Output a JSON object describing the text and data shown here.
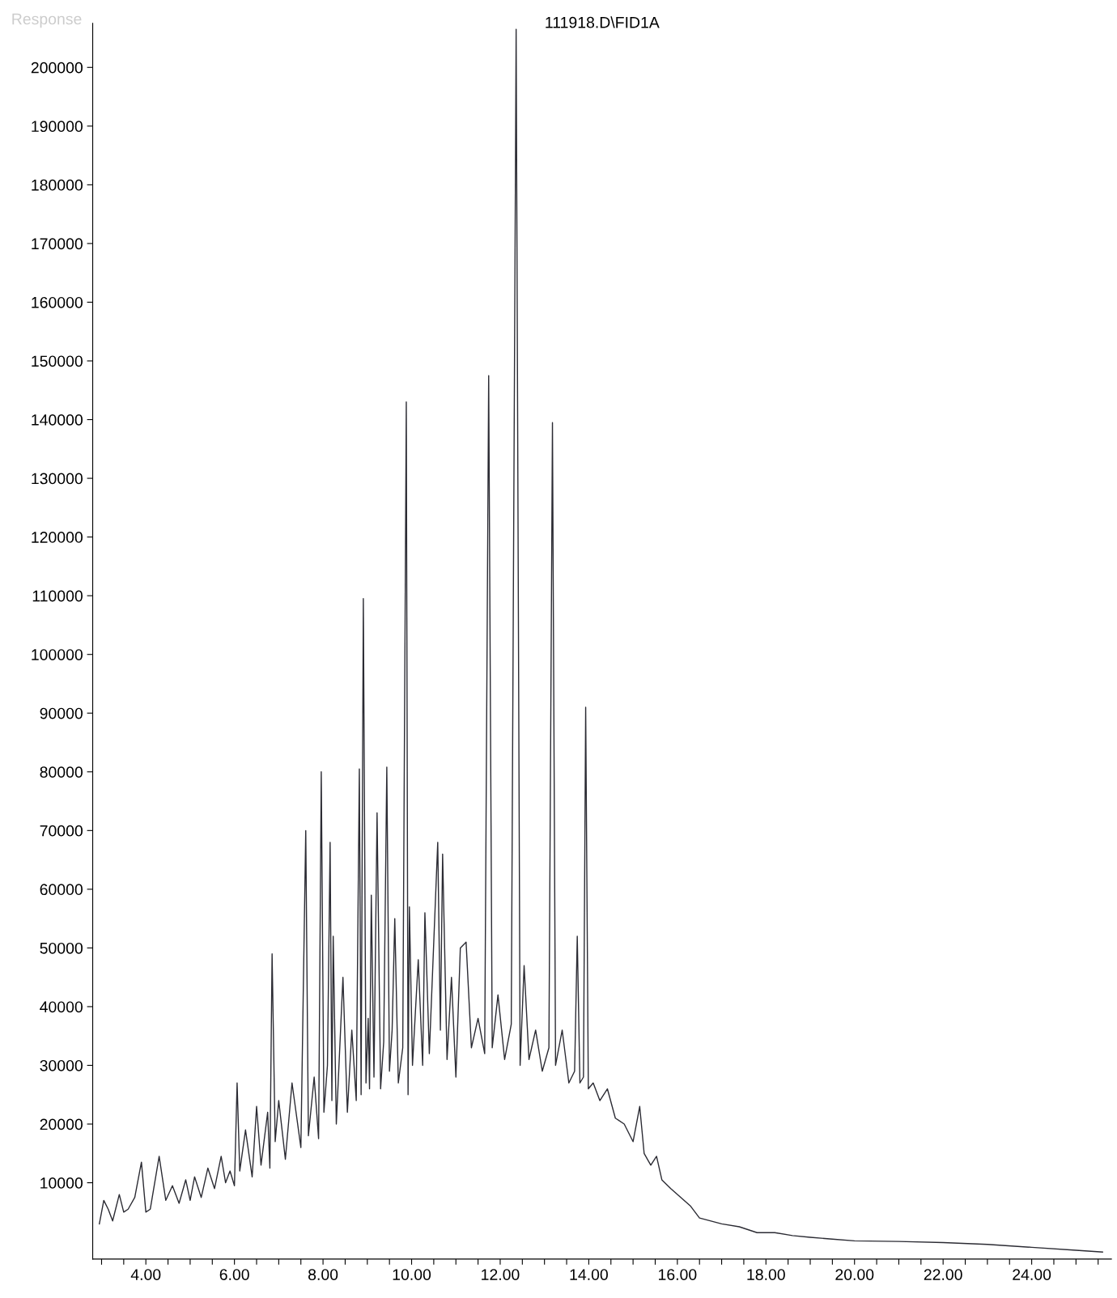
{
  "chart_data": {
    "type": "line",
    "title": "111918.D\\FID1A",
    "ylabel": "Response",
    "x": [
      2.95,
      3.05,
      3.15,
      3.25,
      3.4,
      3.5,
      3.6,
      3.75,
      3.9,
      4.0,
      4.1,
      4.3,
      4.45,
      4.6,
      4.75,
      4.9,
      5.0,
      5.1,
      5.25,
      5.4,
      5.55,
      5.7,
      5.8,
      5.9,
      6.0,
      6.06,
      6.12,
      6.25,
      6.4,
      6.5,
      6.6,
      6.75,
      6.8,
      6.85,
      6.92,
      7.0,
      7.15,
      7.3,
      7.5,
      7.61,
      7.67,
      7.8,
      7.9,
      7.96,
      8.02,
      8.1,
      8.16,
      8.2,
      8.23,
      8.3,
      8.45,
      8.55,
      8.65,
      8.75,
      8.82,
      8.86,
      8.91,
      8.97,
      9.02,
      9.05,
      9.09,
      9.15,
      9.22,
      9.3,
      9.37,
      9.44,
      9.5,
      9.56,
      9.62,
      9.7,
      9.8,
      9.88,
      9.92,
      9.95,
      10.02,
      10.15,
      10.25,
      10.3,
      10.4,
      10.59,
      10.65,
      10.7,
      10.8,
      10.9,
      11.0,
      11.1,
      11.23,
      11.35,
      11.5,
      11.65,
      11.74,
      11.82,
      11.95,
      12.1,
      12.25,
      12.36,
      12.45,
      12.54,
      12.65,
      12.8,
      12.95,
      13.1,
      13.18,
      13.25,
      13.4,
      13.55,
      13.68,
      13.74,
      13.8,
      13.88,
      13.93,
      13.99,
      14.1,
      14.25,
      14.42,
      14.6,
      14.8,
      15.0,
      15.15,
      15.25,
      15.4,
      15.53,
      15.65,
      15.85,
      16.3,
      16.5,
      17.0,
      17.4,
      17.8,
      18.2,
      18.6,
      19.0,
      19.5,
      20.0,
      21.0,
      22.0,
      23.0,
      24.0,
      25.0,
      25.6
    ],
    "series": [
      {
        "color": "#2b2b33",
        "values": [
          3000,
          7000,
          5500,
          3500,
          8000,
          5000,
          5500,
          7500,
          13500,
          5000,
          5500,
          14500,
          7000,
          9500,
          6500,
          10500,
          7000,
          11000,
          7500,
          12500,
          9000,
          14500,
          10000,
          12000,
          9500,
          27000,
          12000,
          19000,
          11000,
          23000,
          13000,
          22000,
          12500,
          49000,
          17000,
          24000,
          14000,
          27000,
          16000,
          70000,
          18000,
          28000,
          17500,
          80000,
          22000,
          30000,
          68000,
          24000,
          52000,
          20000,
          45000,
          22000,
          36000,
          24000,
          80500,
          25000,
          109500,
          27000,
          38000,
          26000,
          59000,
          28000,
          73000,
          26000,
          34000,
          80800,
          29000,
          36000,
          55000,
          27000,
          33000,
          143000,
          25000,
          57000,
          30000,
          48000,
          30000,
          56000,
          32000,
          68000,
          36000,
          66000,
          31000,
          45000,
          28000,
          50000,
          51000,
          33000,
          38000,
          32000,
          147500,
          33000,
          42000,
          31000,
          37000,
          206500,
          30000,
          47000,
          31000,
          36000,
          29000,
          33000,
          139500,
          30000,
          36000,
          27000,
          29000,
          52000,
          27000,
          28000,
          91000,
          26000,
          27000,
          24000,
          26000,
          21000,
          20000,
          17000,
          23000,
          15000,
          13000,
          14500,
          10500,
          9000,
          6000,
          4000,
          3000,
          2500,
          1500,
          1500,
          1000,
          700,
          400,
          100,
          0,
          -200,
          -500,
          -1000,
          -1500,
          -1800
        ]
      }
    ],
    "xlim": [
      2.8,
      25.8
    ],
    "ylim": [
      -3000,
      207500
    ],
    "xticks": [
      {
        "value": 3.0,
        "label": null
      },
      {
        "value": 3.5,
        "label": null
      },
      {
        "value": 4,
        "label": "4.00"
      },
      {
        "value": 4.5,
        "label": null
      },
      {
        "value": 5,
        "label": null
      },
      {
        "value": 5.5,
        "label": null
      },
      {
        "value": 6,
        "label": "6.00"
      },
      {
        "value": 6.5,
        "label": null
      },
      {
        "value": 7,
        "label": null
      },
      {
        "value": 7.5,
        "label": null
      },
      {
        "value": 8,
        "label": "8.00"
      },
      {
        "value": 8.5,
        "label": null
      },
      {
        "value": 9,
        "label": null
      },
      {
        "value": 9.5,
        "label": null
      },
      {
        "value": 10,
        "label": "10.00"
      },
      {
        "value": 10.5,
        "label": null
      },
      {
        "value": 11,
        "label": null
      },
      {
        "value": 11.5,
        "label": null
      },
      {
        "value": 12,
        "label": "12.00"
      },
      {
        "value": 12.5,
        "label": null
      },
      {
        "value": 13,
        "label": null
      },
      {
        "value": 13.5,
        "label": null
      },
      {
        "value": 14,
        "label": "14.00"
      },
      {
        "value": 14.5,
        "label": null
      },
      {
        "value": 15,
        "label": null
      },
      {
        "value": 15.5,
        "label": null
      },
      {
        "value": 16,
        "label": "16.00"
      },
      {
        "value": 16.5,
        "label": null
      },
      {
        "value": 17,
        "label": null
      },
      {
        "value": 17.5,
        "label": null
      },
      {
        "value": 18,
        "label": "18.00"
      },
      {
        "value": 18.5,
        "label": null
      },
      {
        "value": 19,
        "label": null
      },
      {
        "value": 19.5,
        "label": null
      },
      {
        "value": 20,
        "label": "20.00"
      },
      {
        "value": 20.5,
        "label": null
      },
      {
        "value": 21,
        "label": null
      },
      {
        "value": 21.5,
        "label": null
      },
      {
        "value": 22,
        "label": "22.00"
      },
      {
        "value": 22.5,
        "label": null
      },
      {
        "value": 23,
        "label": null
      },
      {
        "value": 23.5,
        "label": null
      },
      {
        "value": 24,
        "label": "24.00"
      },
      {
        "value": 24.5,
        "label": null
      },
      {
        "value": 25,
        "label": null
      },
      {
        "value": 25.5,
        "label": null
      }
    ],
    "yticks": [
      10000,
      20000,
      30000,
      40000,
      50000,
      60000,
      70000,
      80000,
      90000,
      100000,
      110000,
      120000,
      130000,
      140000,
      150000,
      160000,
      170000,
      180000,
      190000,
      200000
    ],
    "grid": false,
    "legend": false
  }
}
